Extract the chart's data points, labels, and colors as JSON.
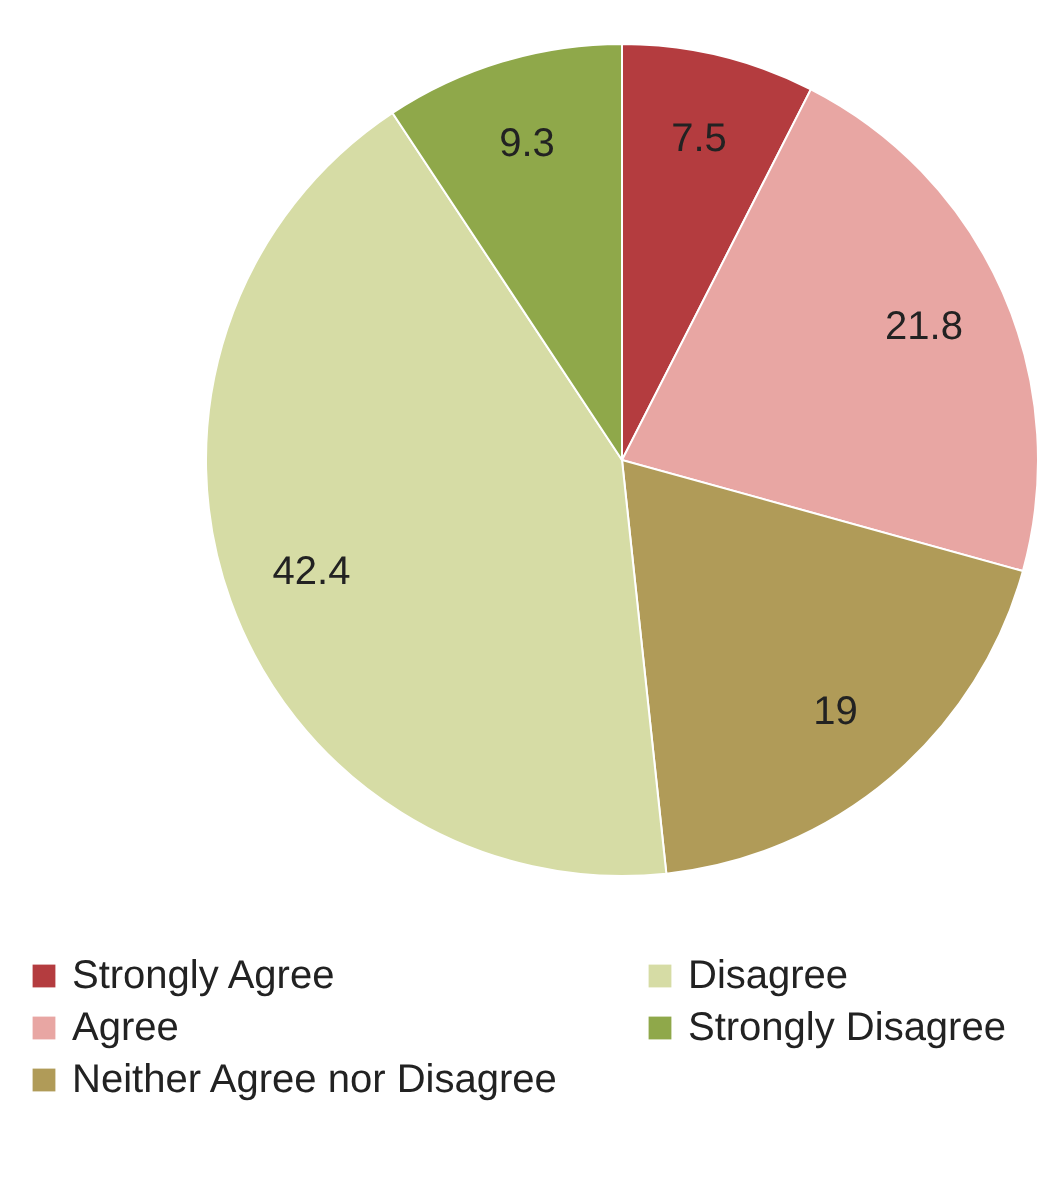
{
  "chart_data": {
    "type": "pie",
    "categories": [
      "Strongly Agree",
      "Agree",
      "Neither Agree nor Disagree",
      "Disagree",
      "Strongly Disagree"
    ],
    "values": [
      7.5,
      21.8,
      19,
      42.4,
      9.3
    ],
    "colors": [
      "#b43c3f",
      "#e8a6a3",
      "#b09b58",
      "#d6dca5",
      "#8fa84a"
    ],
    "data_labels": true,
    "legend": "bottom"
  }
}
